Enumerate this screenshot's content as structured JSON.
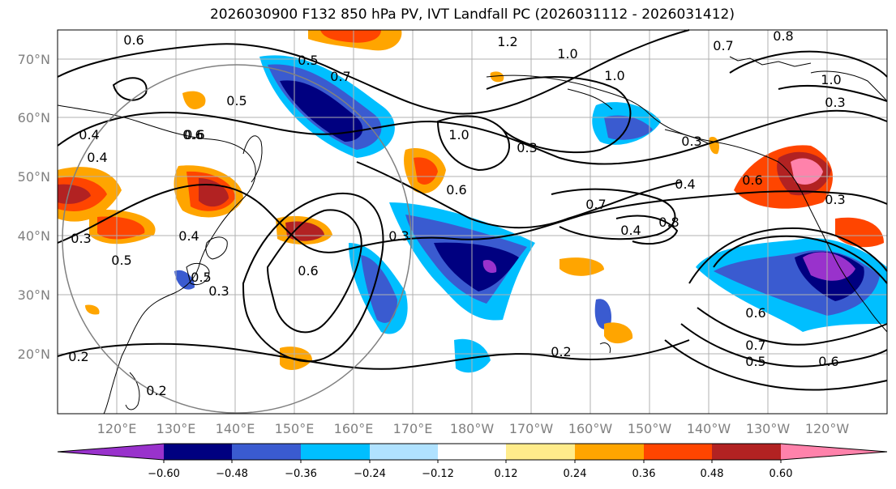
{
  "title": "2026030900 F132 850 hPa PV, IVT Landfall PC (2026031112 - 2026031412)",
  "lat_labels": [
    "70°N",
    "60°N",
    "50°N",
    "40°N",
    "30°N",
    "20°N"
  ],
  "lon_labels": [
    "120°E",
    "130°E",
    "140°E",
    "150°E",
    "160°E",
    "170°E",
    "180°W",
    "170°W",
    "160°W",
    "150°W",
    "140°W",
    "130°W",
    "120°W"
  ],
  "colorbar": {
    "colors": [
      "#9932cc",
      "#000080",
      "#3a5bd0",
      "#00bfff",
      "#b0e2ff",
      "#ffffff",
      "#ffec8b",
      "#ffa500",
      "#ff4500",
      "#b22222",
      "#ff82ab"
    ],
    "tick_labels": [
      "−0.60",
      "−0.48",
      "−0.36",
      "−0.24",
      "−0.12",
      "0.12",
      "0.24",
      "0.36",
      "0.48",
      "0.60"
    ]
  },
  "contour_labels": [
    "0.6",
    "0.5",
    "0.7",
    "1.2",
    "1.0",
    "1.0",
    "0.7",
    "0.4",
    "0.6",
    "0.5",
    "1.0",
    "0.3",
    "0.3",
    "0.4",
    "0.6",
    "0.6",
    "0.7",
    "0.8",
    "0.4",
    "0.3",
    "0.3",
    "0.5",
    "0.4",
    "0.6",
    "0.3",
    "0.6",
    "0.7",
    "0.5",
    "0.6",
    "0.2",
    "0.2",
    "0.2",
    "0.3",
    "0.8",
    "1.0",
    "0.3",
    "0.6",
    "0.4",
    "0.5"
  ]
}
